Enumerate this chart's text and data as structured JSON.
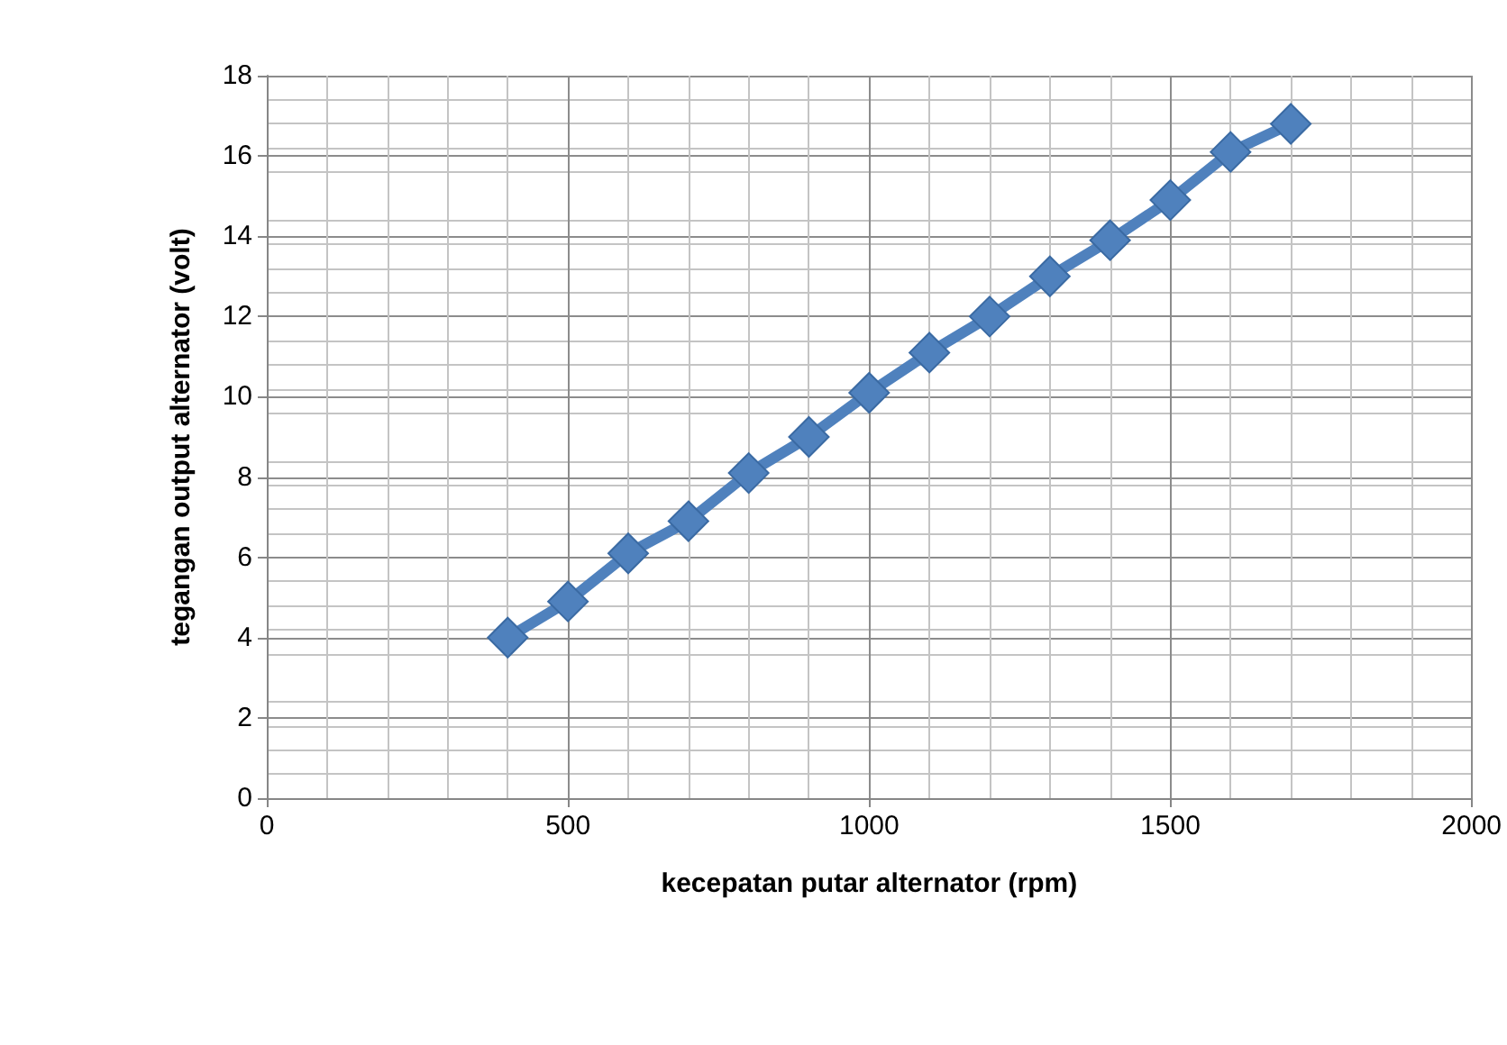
{
  "chart_data": {
    "type": "line",
    "xlabel": "kecepatan putar alternator (rpm)",
    "ylabel": "tegangan output alternator (volt)",
    "x": [
      400,
      500,
      600,
      700,
      800,
      900,
      1000,
      1100,
      1200,
      1300,
      1400,
      1500,
      1600,
      1700
    ],
    "series": [
      {
        "color": "#4f81bd",
        "values": [
          4.0,
          4.9,
          6.1,
          6.9,
          8.1,
          9.0,
          10.1,
          11.1,
          12.0,
          13.0,
          13.9,
          14.9,
          16.1,
          16.8
        ]
      }
    ],
    "xlim": [
      0,
      2000
    ],
    "xticks": [
      0,
      500,
      1000,
      1500,
      2000
    ],
    "ylim": [
      0,
      18
    ],
    "yticks": [
      0,
      2,
      4,
      6,
      8,
      10,
      12,
      14,
      16,
      18
    ],
    "grid": true,
    "marker": "diamond",
    "line_style": "solid"
  }
}
